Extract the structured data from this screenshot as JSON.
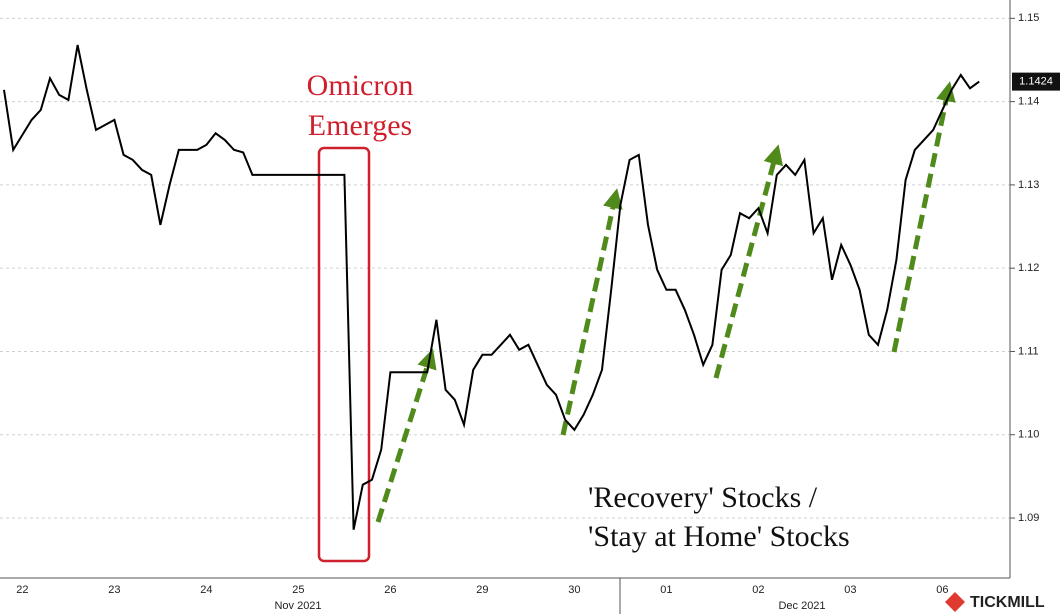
{
  "chart_data": {
    "type": "line",
    "annotation": "Omicron",
    "annotation_line2": "Emerges",
    "legend_line1": "'Recovery' Stocks /",
    "legend_line2": "'Stay at Home' Stocks",
    "last_value_label": "1.1424",
    "month_labels": [
      "Nov 2021",
      "Dec 2021"
    ],
    "logo": "TICKMILL",
    "color": "#000000",
    "categories": [
      null,
      null,
      "22",
      null,
      null,
      null,
      null,
      null,
      null,
      null,
      null,
      null,
      "23",
      null,
      null,
      null,
      null,
      null,
      null,
      null,
      null,
      null,
      "24",
      null,
      null,
      null,
      null,
      null,
      null,
      null,
      null,
      null,
      "25",
      null,
      null,
      null,
      null,
      null,
      null,
      null,
      null,
      null,
      "26",
      null,
      null,
      null,
      null,
      null,
      null,
      null,
      null,
      null,
      "29",
      null,
      null,
      null,
      null,
      null,
      null,
      null,
      null,
      null,
      "30",
      null,
      null,
      null,
      null,
      null,
      null,
      null,
      null,
      null,
      "01",
      null,
      null,
      null,
      null,
      null,
      null,
      null,
      null,
      null,
      "02",
      null,
      null,
      null,
      null,
      null,
      null,
      null,
      null,
      null,
      "03",
      null,
      null,
      null,
      null,
      null,
      null,
      null,
      null,
      null,
      "06",
      null,
      null,
      null,
      null
    ],
    "values": [
      1.1414,
      1.1342,
      1.136,
      1.1378,
      1.139,
      1.1428,
      1.1408,
      1.1402,
      1.1468,
      1.1414,
      1.1366,
      1.1372,
      1.1378,
      1.1336,
      1.133,
      1.1318,
      1.1312,
      1.1252,
      1.13,
      1.1342,
      1.1342,
      1.1342,
      1.1348,
      1.1362,
      1.1354,
      1.1342,
      1.1339,
      1.1312,
      1.1312,
      1.1312,
      1.1312,
      1.1312,
      1.1312,
      1.1312,
      1.1312,
      1.1312,
      1.1312,
      1.1312,
      1.0886,
      1.094,
      1.0946,
      1.0982,
      1.1075,
      1.1075,
      1.1075,
      1.1075,
      1.1075,
      1.1138,
      1.1054,
      1.1042,
      1.1012,
      1.1078,
      1.1096,
      1.1096,
      1.1108,
      1.112,
      1.1102,
      1.1108,
      1.1084,
      1.106,
      1.1048,
      1.1018,
      1.1006,
      1.1024,
      1.1048,
      1.1078,
      1.1174,
      1.1276,
      1.133,
      1.1336,
      1.1252,
      1.1198,
      1.1174,
      1.1174,
      1.115,
      1.112,
      1.1084,
      1.1108,
      1.1198,
      1.1216,
      1.1266,
      1.126,
      1.1272,
      1.1242,
      1.1312,
      1.1324,
      1.1312,
      1.133,
      1.1242,
      1.126,
      1.1186,
      1.1228,
      1.1204,
      1.1174,
      1.112,
      1.1108,
      1.115,
      1.121,
      1.1306,
      1.1342,
      1.1354,
      1.1366,
      1.139,
      1.1414,
      1.1432,
      1.1416,
      1.1424
    ],
    "ylim": [
      1.0828,
      1.1522
    ],
    "yticks": [
      1.09,
      {
        "value": 1.1,
        "label": "1.10"
      },
      1.11,
      1.12,
      1.13,
      1.14,
      1.15
    ],
    "grid": true
  }
}
